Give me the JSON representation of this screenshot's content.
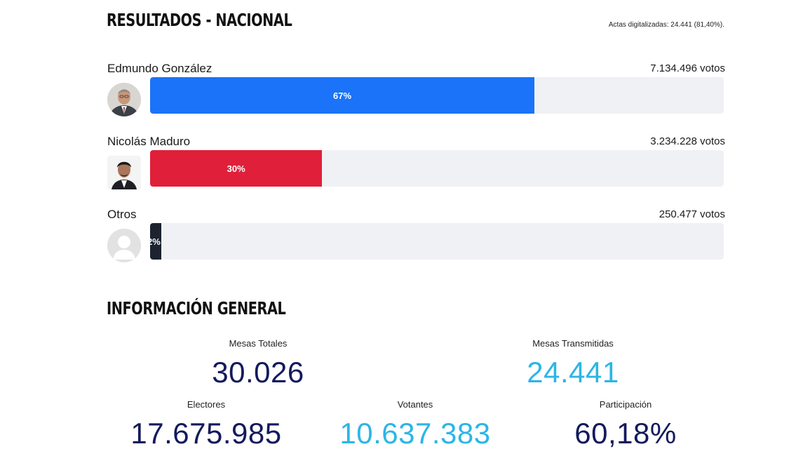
{
  "header": {
    "title": "RESULTADOS - NACIONAL",
    "actas": "Actas digitalizadas: 24.441 (81,40%)."
  },
  "candidates": [
    {
      "name": "Edmundo González",
      "votes": "7.134.496 votos",
      "percent_label": "67%",
      "percent": 67,
      "color": "#1a73f8",
      "avatar_icon": "person-photo-icon"
    },
    {
      "name": "Nicolás Maduro",
      "votes": "3.234.228 votos",
      "percent_label": "30%",
      "percent": 30,
      "color": "#e0203a",
      "avatar_icon": "person-photo-icon"
    },
    {
      "name": "Otros",
      "votes": "250.477 votos",
      "percent_label": "2%",
      "percent": 2,
      "color": "#1c2230",
      "avatar_icon": "default-user-icon"
    }
  ],
  "info": {
    "title": "INFORMACIÓN GENERAL",
    "mesas_totales": {
      "label": "Mesas Totales",
      "value": "30.026",
      "color": "#131a5c"
    },
    "mesas_transmitidas": {
      "label": "Mesas Transmitidas",
      "value": "24.441",
      "color": "#2bb6e6"
    },
    "electores": {
      "label": "Electores",
      "value": "17.675.985",
      "color": "#131a5c"
    },
    "votantes": {
      "label": "Votantes",
      "value": "10.637.383",
      "color": "#2bb6e6"
    },
    "participacion": {
      "label": "Participación",
      "value": "60,18%",
      "color": "#131a5c"
    }
  }
}
